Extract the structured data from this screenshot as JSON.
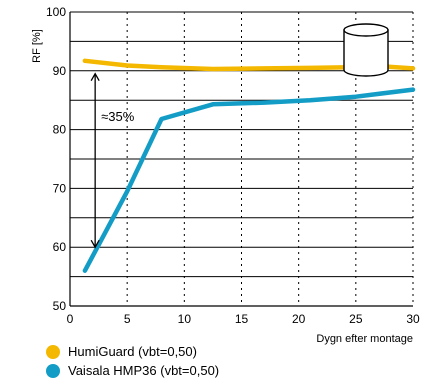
{
  "chart_data": {
    "type": "line",
    "xlabel": "Dygn efter montage",
    "ylabel": "RF [%]",
    "xlim": [
      0,
      30
    ],
    "ylim": [
      50,
      100
    ],
    "x_ticks": [
      "0",
      "5",
      "10",
      "15",
      "20",
      "25",
      "30"
    ],
    "y_ticks": [
      "50",
      "60",
      "70",
      "80",
      "90",
      "100"
    ],
    "annotation": "≈35%",
    "grid": "horizontal solid every 5, vertical dotted every 5",
    "legend_placement": "bottom-left",
    "series": [
      {
        "name": "HumiGuard (vbt=0,50)",
        "color": "#F5B800",
        "x": [
          1.3,
          5,
          8,
          12.5,
          17,
          21,
          24.5,
          27,
          30
        ],
        "y": [
          91.7,
          90.9,
          90.6,
          90.3,
          90.4,
          90.5,
          90.6,
          90.8,
          90.4
        ]
      },
      {
        "name": "Vaisala HMP36 (vbt=0,50)",
        "color": "#139DC6",
        "x": [
          1.3,
          5,
          8,
          12.5,
          17,
          21,
          25,
          30
        ],
        "y": [
          56.0,
          69.5,
          81.8,
          84.3,
          84.6,
          85.0,
          85.6,
          86.8
        ]
      }
    ]
  }
}
